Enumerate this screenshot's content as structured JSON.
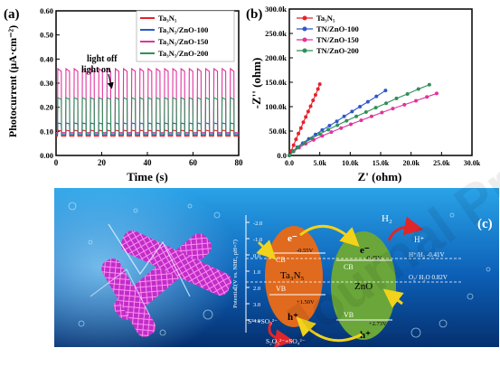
{
  "watermark": "Journal Pre-proofs",
  "panels": {
    "a": {
      "label": "(a)"
    },
    "b": {
      "label": "(b)"
    },
    "c": {
      "label": "(c)"
    }
  },
  "chart_data": [
    {
      "id": "a",
      "type": "line",
      "xlabel": "Time (s)",
      "ylabel": "Photocurrent (μA·cm⁻²)",
      "xlim": [
        0,
        80
      ],
      "ylim": [
        0.0,
        0.6
      ],
      "xticks": [
        0,
        20,
        40,
        60,
        80
      ],
      "yticks": [
        0.0,
        0.1,
        0.2,
        0.3,
        0.4,
        0.5,
        0.6
      ],
      "ytick_labels": [
        "0.00",
        "0.10",
        "0.20",
        "0.30",
        "0.40",
        "0.50",
        "0.60"
      ],
      "annotations": [
        "light off",
        "light on"
      ],
      "legend_position": "top-right",
      "cycle_period_s": 3.6,
      "series": [
        {
          "name": "Ta₃N₅",
          "color": "#e8212b",
          "dark": 0.08,
          "light": 0.105
        },
        {
          "name": "Ta₃N₅/ZnO-100",
          "color": "#2f57c9",
          "dark": 0.085,
          "light": 0.135
        },
        {
          "name": "Ta₃N₅/ZnO-150",
          "color": "#e0339e",
          "dark": 0.095,
          "light": 0.36
        },
        {
          "name": "Ta₃N₅/ZnO-200",
          "color": "#2f8f5a",
          "dark": 0.09,
          "light": 0.24
        }
      ]
    },
    {
      "id": "b",
      "type": "scatter",
      "xlabel": "Z' (ohm)",
      "ylabel": "-Z'' (ohm)",
      "xlim": [
        0,
        30000
      ],
      "ylim": [
        0,
        300000
      ],
      "xticks": [
        0,
        5000,
        10000,
        15000,
        20000,
        25000,
        30000
      ],
      "xtick_labels": [
        "0.0",
        "5.0k",
        "10.0k",
        "15.0k",
        "20.0k",
        "25.0k",
        "30.0k"
      ],
      "yticks": [
        0,
        50000,
        100000,
        150000,
        200000,
        250000,
        300000
      ],
      "ytick_labels": [
        "0.0",
        "50.0k",
        "100.0k",
        "150.0k",
        "200.0k",
        "250.0k",
        "300.0k"
      ],
      "legend_position": "top-left",
      "series": [
        {
          "name": "Ta₃N₅",
          "color": "#e8212b",
          "x": [
            0,
            300,
            700,
            1100,
            1500,
            1900,
            2300,
            2700,
            3100,
            3500,
            3900,
            4300,
            4700,
            5000
          ],
          "y": [
            0,
            9000,
            21000,
            33000,
            45000,
            56000,
            68000,
            79000,
            90000,
            101000,
            113000,
            124000,
            136000,
            146000
          ]
        },
        {
          "name": "TN/ZnO-100",
          "color": "#2f57c9",
          "x": [
            0,
            600,
            1300,
            2200,
            3200,
            4300,
            5400,
            6600,
            7800,
            9000,
            10300,
            11600,
            12900,
            14300,
            15800
          ],
          "y": [
            0,
            9000,
            17000,
            25000,
            34000,
            43000,
            52000,
            61000,
            70000,
            80000,
            90000,
            100000,
            110000,
            121000,
            133000
          ]
        },
        {
          "name": "TN/ZnO-150",
          "color": "#e0339e",
          "x": [
            0,
            700,
            1600,
            2700,
            4000,
            5400,
            6900,
            8500,
            10100,
            11800,
            13500,
            15200,
            17000,
            18900,
            20800,
            22600,
            24200
          ],
          "y": [
            0,
            8000,
            16000,
            24000,
            32000,
            40000,
            48000,
            56000,
            64000,
            72000,
            80000,
            88000,
            96000,
            104000,
            112000,
            120000,
            127000
          ]
        },
        {
          "name": "TN/ZnO-200",
          "color": "#2f8f5a",
          "x": [
            0,
            650,
            1450,
            2500,
            3700,
            5000,
            6400,
            7900,
            9400,
            11000,
            12600,
            14200,
            15900,
            17600,
            19400,
            21200,
            23000
          ],
          "y": [
            0,
            9000,
            17000,
            26000,
            35000,
            44000,
            53000,
            62000,
            71000,
            80000,
            89000,
            98000,
            107000,
            117000,
            126000,
            136000,
            145000
          ]
        }
      ]
    }
  ],
  "diagram": {
    "yaxis_label": "Potential (V vs. NHE, pH=7)",
    "potential_ticks": [
      "-2.0",
      "-1.0",
      "0.0",
      "1.0",
      "2.0",
      "3.0",
      "4.0"
    ],
    "ta3n5": {
      "name": "Ta₃N₅",
      "cb_label": "CB",
      "vb_label": "VB",
      "cb_value": "-0.55V",
      "vb_value": "+1.50V",
      "electron": "e⁻",
      "hole": "h⁺",
      "color": "#e06a1e"
    },
    "zno": {
      "name": "ZnO",
      "cb_label": "CB",
      "vb_label": "VB",
      "cb_value": "-0.45V",
      "vb_value": "+2.73V",
      "electron": "e⁻",
      "hole": "h⁺",
      "color": "#6aa63a"
    },
    "h2_label": "H₂",
    "hplus_label": "H⁺",
    "h_couple": "H⁺/H₂ -0.41V",
    "o_couple": "O₂/ H₂O  0.82V",
    "s_reactant": "S²⁻+SO₃²⁻",
    "s_product": "S₂O₃²⁻+SO₄²⁻"
  }
}
